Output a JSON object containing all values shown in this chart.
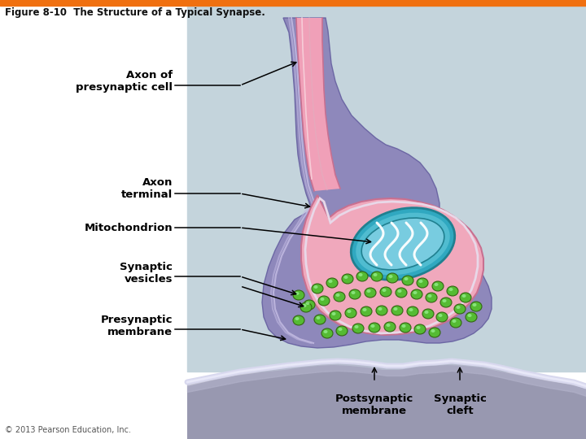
{
  "title": "Figure 8-10  The Structure of a Typical Synapse.",
  "title_fontsize": 8.5,
  "header_bar_color": "#f07010",
  "bg_color_top": "#c8d8e0",
  "bg_color_bottom": "#b0c4cc",
  "copyright": "© 2013 Pearson Education, Inc.",
  "copyright_fontsize": 7,
  "labels": {
    "axon_of_presynaptic": "Axon of\npresynaptic cell",
    "axon_terminal": "Axon\nterminal",
    "mitochondrion": "Mitochondrion",
    "synaptic_vesicles": "Synaptic\nvesicles",
    "presynaptic_membrane": "Presynaptic\nmembrane",
    "postsynaptic_membrane": "Postsynaptic\nmembrane",
    "synaptic_cleft": "Synaptic\ncleft"
  },
  "colors": {
    "axon_pink": "#f0a0b8",
    "axon_med_pink": "#e888a0",
    "axon_outline": "#c87090",
    "purple_sheath": "#8880b8",
    "purple_sheath_dark": "#6660a0",
    "purple_sheath_light": "#9890c8",
    "white_line": "#e8e8f8",
    "terminal_pink": "#f0a8bc",
    "terminal_outline": "#c87090",
    "mito_outer": "#30a8c0",
    "mito_mid": "#50bcd0",
    "mito_inner": "#78cce0",
    "mito_cristae": "#e8f8ff",
    "mito_outline": "#208090",
    "vesicle_fill": "#55bb33",
    "vesicle_outline": "#336611",
    "postsynaptic_fill": "#9898b0",
    "postsynaptic_top": "#b0b0c8",
    "gray_body": "#a0a0b8",
    "white_membrane": "#e8e8f4"
  }
}
